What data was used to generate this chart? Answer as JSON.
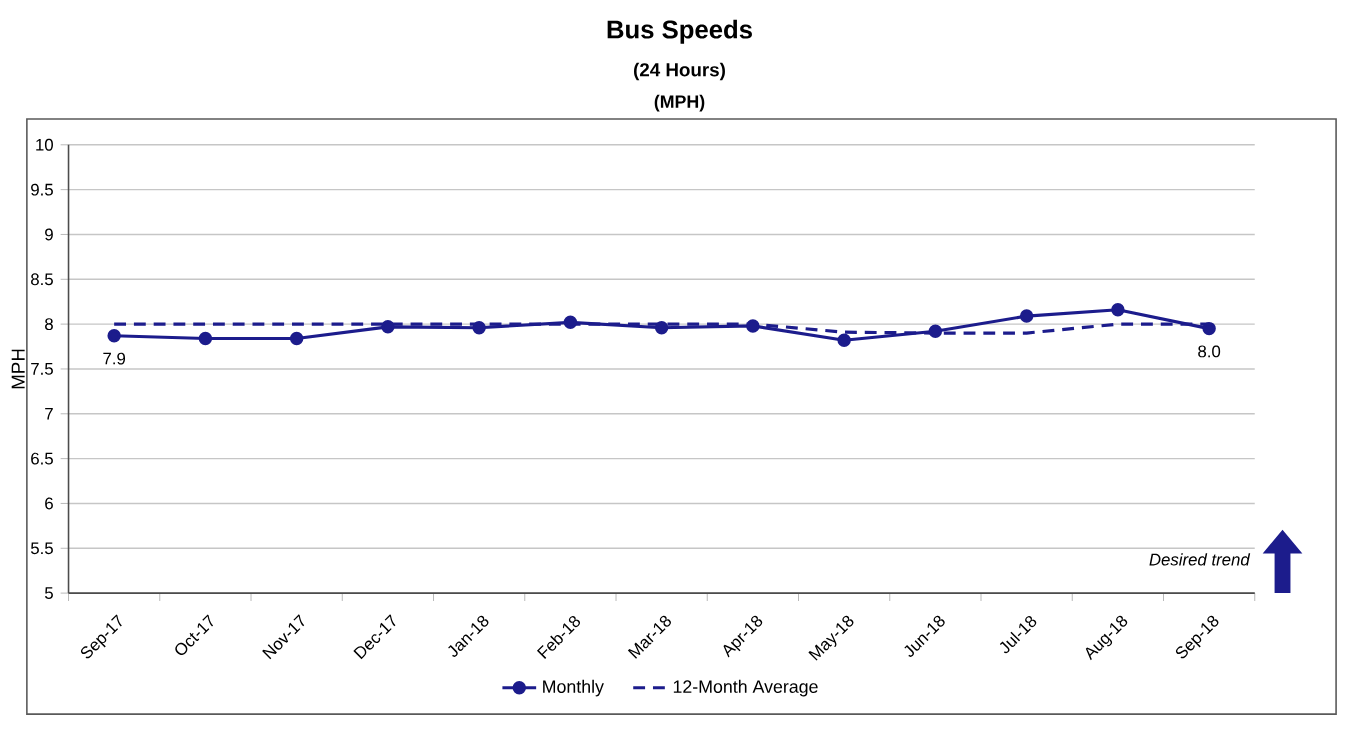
{
  "chart_data": {
    "type": "line",
    "title": "Bus Speeds",
    "subtitle": "(24 Hours)",
    "ylabel": "MPH",
    "annotations": [
      "(MPH)",
      "Desired trend"
    ],
    "categories": [
      "Sep-17",
      "Oct-17",
      "Nov-17",
      "Dec-17",
      "Jan-18",
      "Feb-18",
      "Mar-18",
      "Apr-18",
      "May-18",
      "Jun-18",
      "Jul-18",
      "Aug-18",
      "Sep-18"
    ],
    "series": [
      {
        "name": "Monthly",
        "color": "#1c1c8c",
        "marker": "circle",
        "line_style": "solid",
        "values": [
          7.87,
          7.84,
          7.84,
          7.97,
          7.96,
          8.02,
          7.96,
          7.98,
          7.82,
          7.92,
          8.09,
          8.16,
          7.95
        ],
        "value_labels": [
          "7.9",
          null,
          null,
          null,
          null,
          null,
          null,
          null,
          null,
          null,
          null,
          null,
          "8.0"
        ]
      },
      {
        "name": "12-Month Average",
        "color": "#1c1c8c",
        "marker": "none",
        "line_style": "dashed",
        "values": [
          8.0,
          8.0,
          8.0,
          8.0,
          8.0,
          8.0,
          8.0,
          8.0,
          7.91,
          7.9,
          7.9,
          8.0,
          8.0
        ]
      }
    ],
    "ylim": [
      5,
      10
    ],
    "yticks": [
      5,
      5.5,
      6,
      6.5,
      7,
      7.5,
      8,
      8.5,
      9,
      9.5,
      10
    ],
    "grid": "y",
    "legend": "bottom"
  }
}
